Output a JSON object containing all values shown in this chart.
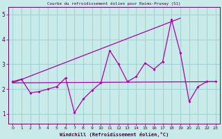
{
  "title": "Courbe du refroidissement éolien pour Reims-Prunay (51)",
  "xlabel": "Windchill (Refroidissement éolien,°C)",
  "bg_color": "#c8eae8",
  "line_color": "#aa00aa",
  "grid_color": "#99cccc",
  "axis_color": "#660066",
  "text_color": "#440044",
  "xlim": [
    -0.5,
    23.5
  ],
  "ylim": [
    0.6,
    5.3
  ],
  "xticks": [
    0,
    1,
    2,
    3,
    4,
    5,
    6,
    7,
    8,
    9,
    10,
    11,
    12,
    13,
    14,
    15,
    16,
    17,
    18,
    19,
    20,
    21,
    22,
    23
  ],
  "yticks": [
    1,
    2,
    3,
    4,
    5
  ],
  "series_zigzag": {
    "x": [
      0,
      1,
      2,
      3,
      4,
      5,
      6,
      7,
      8,
      9,
      10,
      11,
      12,
      13,
      14,
      15,
      16,
      17,
      18,
      19,
      20,
      21,
      22,
      23
    ],
    "y": [
      2.3,
      2.4,
      1.85,
      1.9,
      2.0,
      2.1,
      2.45,
      1.05,
      1.6,
      1.95,
      2.25,
      3.55,
      3.0,
      2.3,
      2.5,
      3.05,
      2.8,
      3.1,
      4.8,
      3.45,
      1.5,
      2.1,
      2.3,
      2.3
    ]
  },
  "series_smooth": {
    "x": [
      0,
      23
    ],
    "y": [
      2.25,
      2.3
    ]
  },
  "series_diagonal": {
    "x": [
      0,
      19
    ],
    "y": [
      2.25,
      4.85
    ]
  }
}
